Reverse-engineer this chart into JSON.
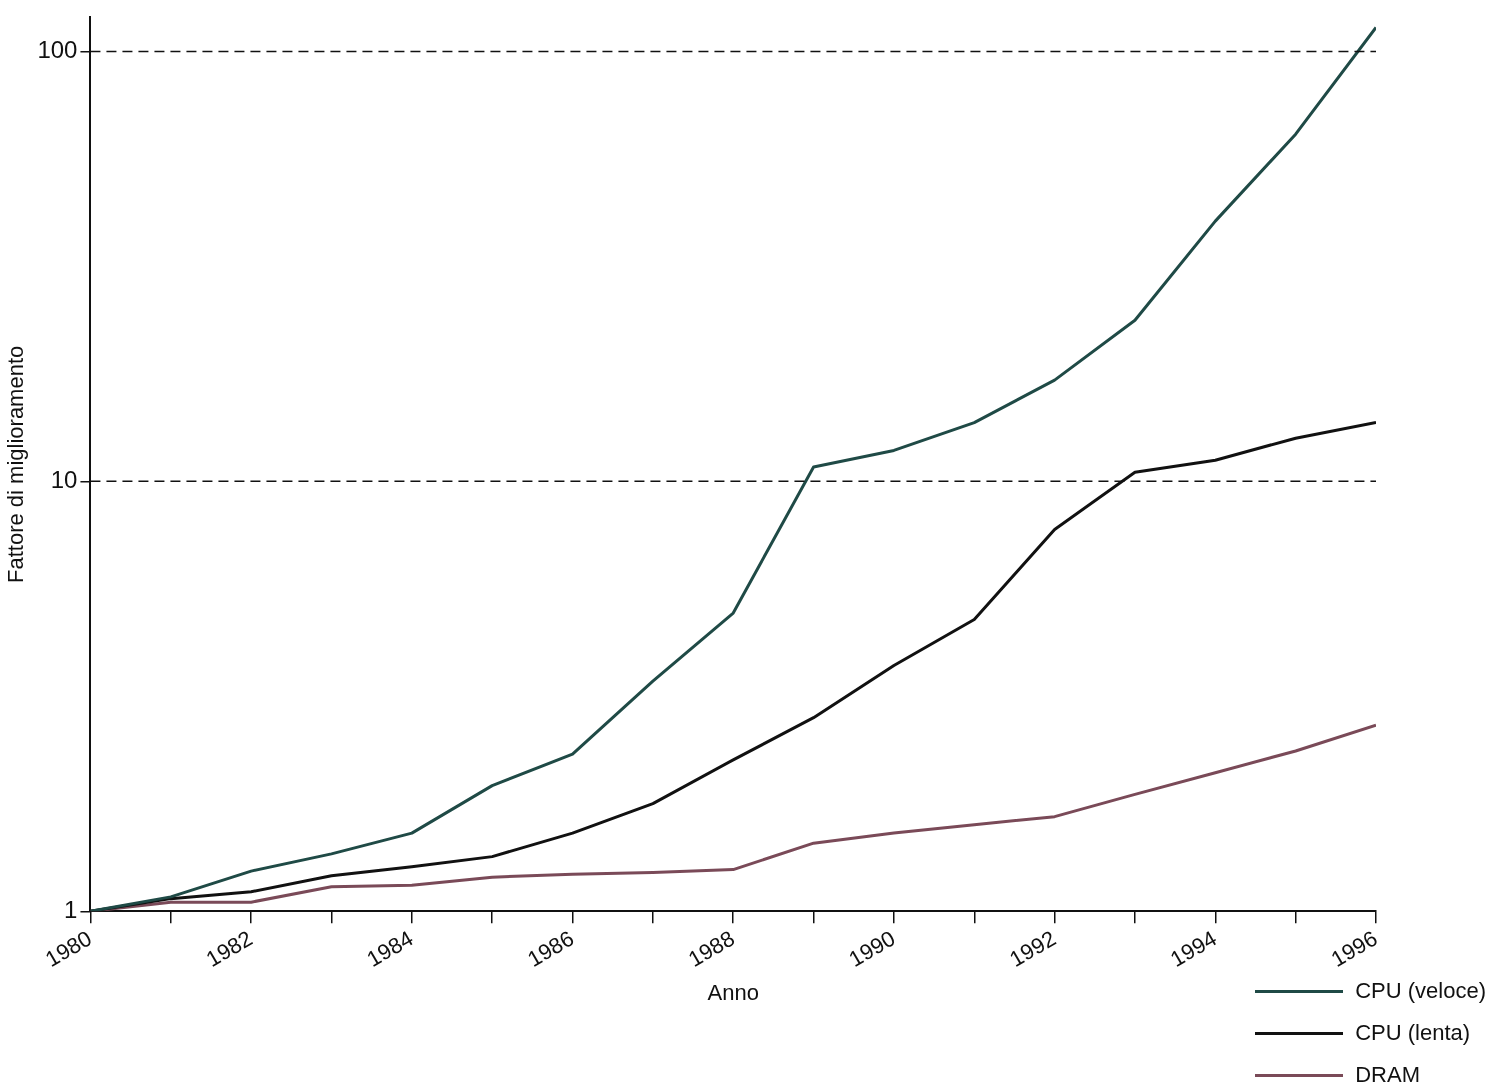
{
  "chart_data": {
    "type": "line",
    "xlabel": "Anno",
    "ylabel": "Fattore di miglioramento",
    "x": [
      1980,
      1981,
      1982,
      1983,
      1984,
      1985,
      1986,
      1987,
      1988,
      1989,
      1990,
      1991,
      1992,
      1993,
      1994,
      1995,
      1996
    ],
    "series": [
      {
        "name": "CPU (veloce)",
        "color": "#1f4a46",
        "values": [
          1,
          1.08,
          1.24,
          1.36,
          1.52,
          1.96,
          2.32,
          3.43,
          4.94,
          10.8,
          11.8,
          13.7,
          17.2,
          23.7,
          40.3,
          64.2,
          113.7
        ]
      },
      {
        "name": "CPU (lenta)",
        "color": "#111111",
        "values": [
          1,
          1.07,
          1.11,
          1.21,
          1.27,
          1.34,
          1.52,
          1.78,
          2.25,
          2.82,
          3.73,
          4.77,
          7.73,
          10.5,
          11.2,
          12.6,
          13.7
        ]
      },
      {
        "name": "DRAM",
        "color": "#7a4a58",
        "values": [
          1,
          1.05,
          1.05,
          1.14,
          1.15,
          1.2,
          1.22,
          1.23,
          1.25,
          1.44,
          1.52,
          1.59,
          1.66,
          1.87,
          2.1,
          2.36,
          2.71
        ]
      }
    ],
    "log": "y",
    "xlim": [
      1980,
      1996
    ],
    "ylim": [
      1,
      120
    ],
    "yticks": [
      1,
      10,
      100
    ],
    "xticks": [
      1980,
      {
        "value": 1981,
        "label": null
      },
      1982,
      {
        "value": 1983,
        "label": null
      },
      1984,
      {
        "value": 1985,
        "label": null
      },
      1986,
      {
        "value": 1987,
        "label": null
      },
      1988,
      {
        "value": 1989,
        "label": null
      },
      1990,
      {
        "value": 1991,
        "label": null
      },
      1992,
      {
        "value": 1993,
        "label": null
      },
      1994,
      {
        "value": 1995,
        "label": null
      },
      1996
    ],
    "ref_lines": [
      {
        "axis": "y",
        "value": 10,
        "line_style": "dashed"
      },
      {
        "axis": "y",
        "value": 100,
        "line_style": "dashed"
      }
    ],
    "grid": false,
    "legend": "bottom right",
    "marker": "none",
    "line_style": "solid"
  }
}
